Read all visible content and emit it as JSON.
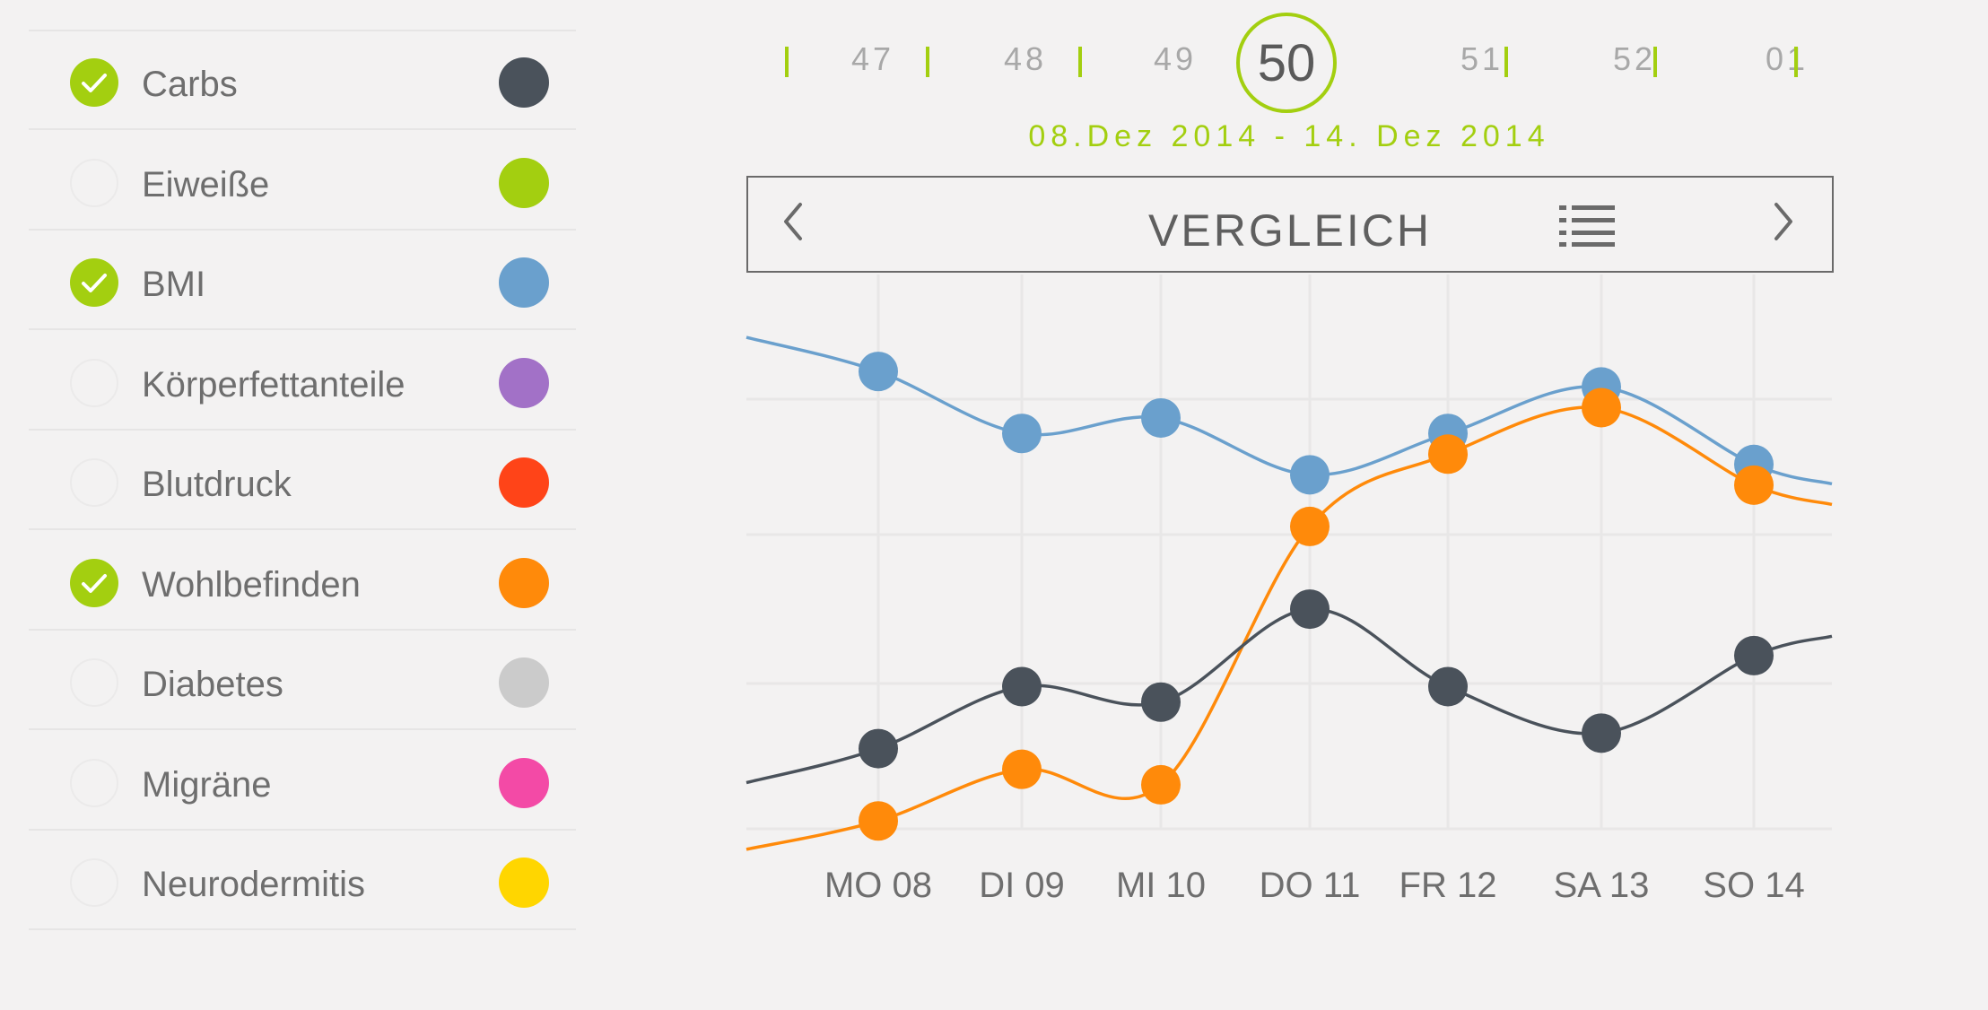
{
  "categories": [
    {
      "label": "Carbs",
      "checked": true,
      "color": "#4a525b"
    },
    {
      "label": "Eiweiße",
      "checked": false,
      "color": "#a3cf10"
    },
    {
      "label": "BMI",
      "checked": true,
      "color": "#6aa0cd"
    },
    {
      "label": "Körperfettanteile",
      "checked": false,
      "color": "#a271c7"
    },
    {
      "label": "Blutdruck",
      "checked": false,
      "color": "#ff4418"
    },
    {
      "label": "Wohlbefinden",
      "checked": true,
      "color": "#ff8a0a"
    },
    {
      "label": "Diabetes",
      "checked": false,
      "color": "#cbcbcb"
    },
    {
      "label": "Migräne",
      "checked": false,
      "color": "#f34aa6"
    },
    {
      "label": "Neurodermitis",
      "checked": false,
      "color": "#ffd600"
    }
  ],
  "weeks": {
    "items": [
      "47",
      "48",
      "49",
      "50",
      "51",
      "52",
      "01"
    ],
    "current": "50",
    "date_range": "08.Dez 2014 - 14. Dez 2014"
  },
  "header": {
    "title": "VERGLEICH",
    "prev_icon": "chevron-left-icon",
    "next_icon": "chevron-right-icon",
    "list_icon": "list-icon"
  },
  "accent_color": "#a3cf10",
  "chart_data": {
    "type": "line",
    "categories": [
      "MO 08",
      "DI 09",
      "MI 10",
      "DO 11",
      "FR 12",
      "SA 13",
      "SO 14"
    ],
    "ylim": [
      0,
      100
    ],
    "grid": true,
    "legend": "none",
    "series": [
      {
        "name": "BMI",
        "color": "#6aa0cd",
        "values": [
          88,
          76,
          79,
          68,
          76,
          85,
          70
        ]
      },
      {
        "name": "Wohlbefinden",
        "color": "#ff8a0a",
        "values": [
          1,
          11,
          8,
          58,
          72,
          81,
          66
        ]
      },
      {
        "name": "Carbs",
        "color": "#4a525b",
        "values": [
          15,
          27,
          24,
          42,
          27,
          18,
          33
        ]
      }
    ]
  }
}
